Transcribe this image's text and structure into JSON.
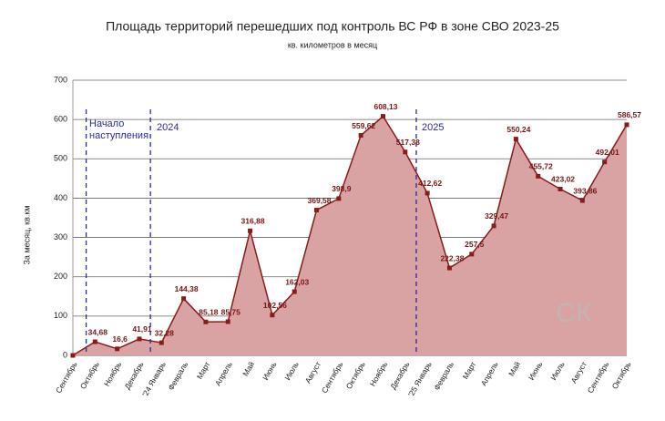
{
  "chart_data": {
    "type": "area",
    "title": "Площадь территорий перешедших под контроль ВС РФ в зоне СВО 2023-25",
    "subtitle": "кв. километров в месяц",
    "y_label": "За месяц, кв.км",
    "categories": [
      "Сентябрь",
      "Октябрь",
      "Ноябрь",
      "Декабрь",
      "'24 Январь",
      "Февраль",
      "Март",
      "Апрель",
      "Май",
      "Июнь",
      "Июль",
      "Август",
      "Сентябрь",
      "Октябрь",
      "Ноябрь",
      "Декабрь",
      "'25 Январь",
      "Февраль",
      "Март",
      "Апрель",
      "Май",
      "Июнь",
      "Июль",
      "Август",
      "Сентябрь",
      "Октябрь"
    ],
    "values": [
      0,
      34.68,
      16.6,
      41.91,
      32.28,
      144.38,
      85.18,
      85.75,
      316.88,
      102.56,
      162.03,
      369.58,
      398.9,
      559.62,
      608.13,
      517.38,
      412.62,
      222.38,
      257.5,
      329.47,
      550.24,
      455.72,
      423.02,
      393.86,
      492.01,
      586.57
    ],
    "value_labels": [
      null,
      "34,68",
      "16,6",
      "41,91",
      "32,28",
      "144,38",
      "85,18",
      "85,75",
      "316,88",
      "102,56",
      "162,03",
      "369,58",
      "398,9",
      "559,62",
      "608,13",
      "517,38",
      "412,62",
      "222,38",
      "257,5",
      "329,47",
      "550,24",
      "455,72",
      "423,02",
      "393,86",
      "492,01",
      "586,57"
    ],
    "color": "#8b1a1a",
    "fill": "#d9a3a3",
    "ylim": [
      0,
      700
    ],
    "yticks": [
      0,
      100,
      200,
      300,
      400,
      500,
      600,
      700
    ],
    "grid": true,
    "annotations": [
      "Начало наступления",
      "2024",
      "2025"
    ],
    "watermark": "СК"
  }
}
